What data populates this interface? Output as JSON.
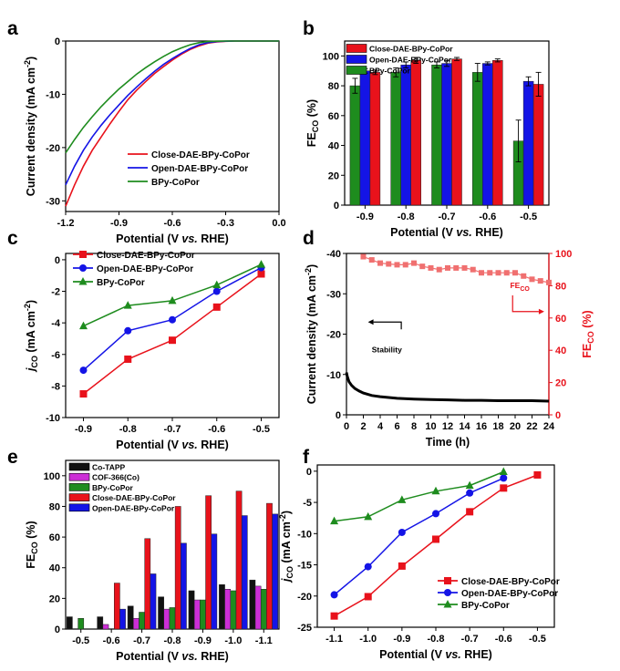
{
  "chart_data": [
    {
      "panel": "a",
      "type": "line",
      "xlabel": "Potential (V vs. RHE)",
      "ylabel": "Current density (mA cm-2)",
      "xlim": [
        -1.2,
        0.0
      ],
      "ylim": [
        -32,
        0
      ],
      "xticks": [
        "-1.2",
        "-0.9",
        "-0.6",
        "-0.3",
        "0.0"
      ],
      "yticks": [
        "0",
        "-10",
        "-20",
        "-30"
      ],
      "legend_position": "bottom-right",
      "series": [
        {
          "name": "Close-DAE-BPy-CoPor",
          "color": "#e8121b",
          "x": [
            -1.2,
            -1.15,
            -1.1,
            -1.05,
            -1.0,
            -0.95,
            -0.9,
            -0.85,
            -0.8,
            -0.75,
            -0.7,
            -0.65,
            -0.6,
            -0.55,
            -0.5,
            -0.45,
            -0.4,
            -0.35,
            -0.3,
            -0.25,
            -0.2,
            -0.1,
            0.0
          ],
          "y": [
            -31,
            -27,
            -23.5,
            -20.5,
            -18,
            -15.5,
            -13.2,
            -11,
            -9.2,
            -7.6,
            -6.1,
            -4.8,
            -3.6,
            -2.5,
            -1.6,
            -0.9,
            -0.4,
            -0.15,
            -0.05,
            0,
            0,
            0,
            0
          ]
        },
        {
          "name": "Open-DAE-BPy-CoPor",
          "color": "#1414e6",
          "x": [
            -1.2,
            -1.15,
            -1.1,
            -1.05,
            -1.0,
            -0.95,
            -0.9,
            -0.85,
            -0.8,
            -0.75,
            -0.7,
            -0.65,
            -0.6,
            -0.55,
            -0.5,
            -0.45,
            -0.4,
            -0.35,
            -0.3,
            -0.25,
            -0.2,
            -0.1,
            0.0
          ],
          "y": [
            -27,
            -23.5,
            -20.5,
            -18,
            -15.8,
            -13.8,
            -12,
            -10.2,
            -8.6,
            -7.1,
            -5.7,
            -4.4,
            -3.3,
            -2.3,
            -1.4,
            -0.7,
            -0.3,
            -0.1,
            -0.03,
            0,
            0,
            0,
            0
          ]
        },
        {
          "name": "BPy-CoPor",
          "color": "#1e8c1e",
          "x": [
            -1.2,
            -1.15,
            -1.1,
            -1.05,
            -1.0,
            -0.95,
            -0.9,
            -0.85,
            -0.8,
            -0.75,
            -0.7,
            -0.65,
            -0.6,
            -0.55,
            -0.5,
            -0.45,
            -0.4,
            -0.35,
            -0.3,
            -0.25,
            -0.2,
            -0.1,
            0.0
          ],
          "y": [
            -21,
            -18.5,
            -16.2,
            -14.2,
            -12.3,
            -10.6,
            -9,
            -7.6,
            -6.2,
            -5,
            -3.9,
            -2.9,
            -2,
            -1.3,
            -0.7,
            -0.3,
            -0.1,
            -0.03,
            0,
            0,
            0,
            0,
            0
          ]
        }
      ]
    },
    {
      "panel": "b",
      "type": "bar",
      "xlabel": "Potential (V vs. RHE)",
      "ylabel": "FECO (%)",
      "ylim": [
        0,
        110
      ],
      "yticks": [
        "0",
        "20",
        "40",
        "60",
        "80",
        "100"
      ],
      "categories": [
        "-0.9",
        "-0.8",
        "-0.7",
        "-0.6",
        "-0.5"
      ],
      "legend_position": "top-left",
      "series": [
        {
          "name": "BPy-CoPor",
          "color": "#1e8c1e",
          "values": [
            80,
            89,
            94,
            89,
            43
          ],
          "errors": [
            5,
            3,
            2,
            6,
            14
          ]
        },
        {
          "name": "Open-DAE-BPy-CoPor",
          "color": "#1414e6",
          "values": [
            90,
            94,
            95,
            95,
            83
          ],
          "errors": [
            1.5,
            2,
            2,
            1,
            3
          ]
        },
        {
          "name": "Close-DAE-BPy-CoPor",
          "color": "#e8121b",
          "values": [
            89,
            97,
            98,
            97,
            81
          ],
          "errors": [
            1.5,
            2,
            1,
            1,
            8
          ]
        }
      ],
      "legend_order": [
        "Close-DAE-BPy-CoPor",
        "Open-DAE-BPy-CoPor",
        "BPy-CoPor"
      ]
    },
    {
      "panel": "c",
      "type": "line",
      "xlabel": "Potential (V vs. RHE)",
      "ylabel": "jCO (mA cm-2)",
      "xlim": [
        -0.94,
        -0.46
      ],
      "ylim": [
        -10,
        0.4
      ],
      "xticks": [
        "-0.9",
        "-0.8",
        "-0.7",
        "-0.6",
        "-0.5"
      ],
      "yticks": [
        "0",
        "-2",
        "-4",
        "-6",
        "-8",
        "-10"
      ],
      "legend_position": "top-left",
      "series": [
        {
          "name": "Close-DAE-BPy-CoPor",
          "color": "#e8121b",
          "marker": "square",
          "x": [
            -0.9,
            -0.8,
            -0.7,
            -0.6,
            -0.5
          ],
          "y": [
            -8.5,
            -6.3,
            -5.1,
            -3.0,
            -0.9
          ]
        },
        {
          "name": "Open-DAE-BPy-CoPor",
          "color": "#1414e6",
          "marker": "circle",
          "x": [
            -0.9,
            -0.8,
            -0.7,
            -0.6,
            -0.5
          ],
          "y": [
            -7.0,
            -4.5,
            -3.8,
            -2.0,
            -0.5
          ]
        },
        {
          "name": "BPy-CoPor",
          "color": "#1e8c1e",
          "marker": "triangle",
          "x": [
            -0.9,
            -0.8,
            -0.7,
            -0.6,
            -0.5
          ],
          "y": [
            -4.2,
            -2.9,
            -2.6,
            -1.6,
            -0.3
          ]
        }
      ]
    },
    {
      "panel": "d",
      "type": "line",
      "xlabel": "Time (h)",
      "ylabel": "Current density (mA cm-2)",
      "y2label": "FECO (%)",
      "xlim": [
        0,
        24
      ],
      "ylim": [
        0,
        -40
      ],
      "y2lim": [
        0,
        100
      ],
      "xticks": [
        "0",
        "2",
        "4",
        "6",
        "8",
        "10",
        "12",
        "14",
        "16",
        "18",
        "20",
        "22",
        "24"
      ],
      "yticks": [
        "-40",
        "-30",
        "-20",
        "-10",
        "0"
      ],
      "y2ticks": [
        "100",
        "80",
        "60",
        "40",
        "20",
        "0"
      ],
      "annotations": [
        "Stability",
        "FECO"
      ],
      "series": [
        {
          "name": "Stability",
          "color": "#000000",
          "axis": "left",
          "x": [
            0,
            0.1,
            0.3,
            0.6,
            1,
            1.5,
            2,
            3,
            4,
            5,
            6,
            8,
            10,
            12,
            14,
            16,
            18,
            20,
            22,
            24
          ],
          "y": [
            -10.5,
            -9.5,
            -8.2,
            -7.3,
            -6.5,
            -5.9,
            -5.4,
            -4.8,
            -4.5,
            -4.3,
            -4.1,
            -3.9,
            -3.8,
            -3.7,
            -3.6,
            -3.6,
            -3.5,
            -3.5,
            -3.5,
            -3.4
          ]
        },
        {
          "name": "FECO",
          "color": "#e8121b",
          "axis": "right",
          "x": [
            2,
            3,
            4,
            5,
            6,
            7,
            8,
            9,
            10,
            11,
            12,
            13,
            14,
            15,
            16,
            17,
            18,
            19,
            20,
            21,
            22,
            23,
            24
          ],
          "y": [
            98,
            96,
            94,
            93.5,
            93,
            93,
            94,
            92,
            91,
            90,
            91,
            91,
            91,
            90,
            88,
            88,
            88,
            88,
            88,
            86,
            84,
            83,
            82
          ]
        }
      ]
    },
    {
      "panel": "e",
      "type": "bar",
      "xlabel": "Potential (V vs. RHE)",
      "ylabel": "FECO (%)",
      "ylim": [
        0,
        110
      ],
      "yticks": [
        "0",
        "20",
        "40",
        "60",
        "80",
        "100"
      ],
      "categories": [
        "-0.5",
        "-0.6",
        "-0.7",
        "-0.8",
        "-0.9",
        "-1.0",
        "-1.1"
      ],
      "legend_position": "top-left",
      "series": [
        {
          "name": "Co-TAPP",
          "color": "#111111",
          "values": [
            8,
            8,
            15,
            21,
            25,
            29,
            32
          ]
        },
        {
          "name": "COF-366(Co)",
          "color": "#cc2ed6",
          "values": [
            0,
            3,
            7,
            13,
            19,
            26,
            28
          ]
        },
        {
          "name": "BPy-CoPor",
          "color": "#1e8c1e",
          "values": [
            7,
            0,
            11,
            14,
            19,
            25,
            26
          ]
        },
        {
          "name": "Close-DAE-BPy-CoPor",
          "color": "#e8121b",
          "values": [
            0,
            30,
            59,
            80,
            87,
            90,
            82
          ]
        },
        {
          "name": "Open-DAE-BPy-CoPor",
          "color": "#1414e6",
          "values": [
            0,
            13,
            36,
            56,
            62,
            74,
            75
          ]
        }
      ]
    },
    {
      "panel": "f",
      "type": "line",
      "xlabel": "Potential (V vs. RHE)",
      "ylabel": "jCO (mA cm-2)",
      "xlim": [
        -1.15,
        -0.45
      ],
      "ylim": [
        -25,
        1
      ],
      "xticks": [
        "-1.1",
        "-1.0",
        "-0.9",
        "-0.8",
        "-0.7",
        "-0.6",
        "-0.5"
      ],
      "yticks": [
        "0",
        "-5",
        "-10",
        "-15",
        "-20",
        "-25"
      ],
      "legend_position": "bottom-right",
      "series": [
        {
          "name": "Close-DAE-BPy-CoPor",
          "color": "#e8121b",
          "marker": "square",
          "x": [
            -1.1,
            -1.0,
            -0.9,
            -0.8,
            -0.7,
            -0.6,
            -0.5
          ],
          "y": [
            -23.2,
            -20.1,
            -15.2,
            -10.9,
            -6.5,
            -2.7,
            -0.6
          ]
        },
        {
          "name": "Open-DAE-BPy-CoPor",
          "color": "#1414e6",
          "marker": "circle",
          "x": [
            -1.1,
            -1.0,
            -0.9,
            -0.8,
            -0.7,
            -0.6
          ],
          "y": [
            -19.8,
            -15.3,
            -9.8,
            -6.8,
            -3.5,
            -1.1
          ]
        },
        {
          "name": "BPy-CoPor",
          "color": "#1e8c1e",
          "marker": "triangle",
          "x": [
            -1.1,
            -1.0,
            -0.9,
            -0.8,
            -0.7,
            -0.6
          ],
          "y": [
            -8.0,
            -7.3,
            -4.6,
            -3.2,
            -2.3,
            -0.1
          ]
        }
      ]
    }
  ],
  "panels": {
    "a": {
      "letter": "a"
    },
    "b": {
      "letter": "b"
    },
    "c": {
      "letter": "c"
    },
    "d": {
      "letter": "d"
    },
    "e": {
      "letter": "e"
    },
    "f": {
      "letter": "f"
    }
  }
}
